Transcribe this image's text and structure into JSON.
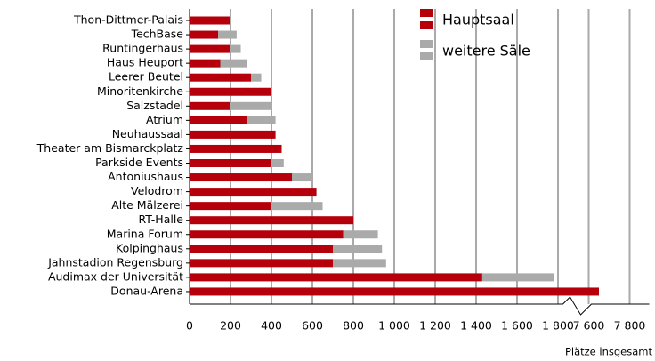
{
  "chart_data": {
    "type": "bar",
    "orientation": "horizontal",
    "stacked": true,
    "categories": [
      "Thon-Dittmer-Palais",
      "TechBase",
      "Runtingerhaus",
      "Haus Heuport",
      "Leerer Beutel",
      "Minoritenkirche",
      "Salzstadel",
      "Atrium",
      "Neuhaussaal",
      "Theater am Bismarckplatz",
      "Parkside Events",
      "Antoniushaus",
      "Velodrom",
      "Alte Mälzerei",
      "RT-Halle",
      "Marina Forum",
      "Kolpinghaus",
      "Jahnstadion Regensburg",
      "Audimax der Universität",
      "Donau-Arena"
    ],
    "series": [
      {
        "name": "Hauptsaal",
        "color": "#b5000b",
        "values": [
          200,
          140,
          200,
          150,
          300,
          400,
          200,
          280,
          420,
          450,
          400,
          500,
          620,
          400,
          800,
          750,
          700,
          700,
          1430,
          7650
        ]
      },
      {
        "name": "weitere Säle",
        "color": "#aaaaaa",
        "values": [
          0,
          90,
          50,
          130,
          50,
          0,
          200,
          140,
          0,
          0,
          60,
          100,
          0,
          250,
          0,
          170,
          240,
          260,
          350,
          0
        ]
      }
    ],
    "xlabel": "Plätze insgesamt",
    "xlim": [
      0,
      7800
    ],
    "x_break": [
      1850,
      7500
    ],
    "xticks": [
      0,
      200,
      400,
      600,
      800,
      {
        "value": 1000,
        "label": "1 000"
      },
      {
        "value": 1200,
        "label": "1 200"
      },
      {
        "value": 1400,
        "label": "1 400"
      },
      {
        "value": 1600,
        "label": "1 600"
      },
      {
        "value": 1800,
        "label": "1 800"
      },
      {
        "value": 7600,
        "label": "7 600"
      },
      {
        "value": 7800,
        "label": "7 800"
      }
    ],
    "grid": true,
    "legend": "upper right"
  }
}
